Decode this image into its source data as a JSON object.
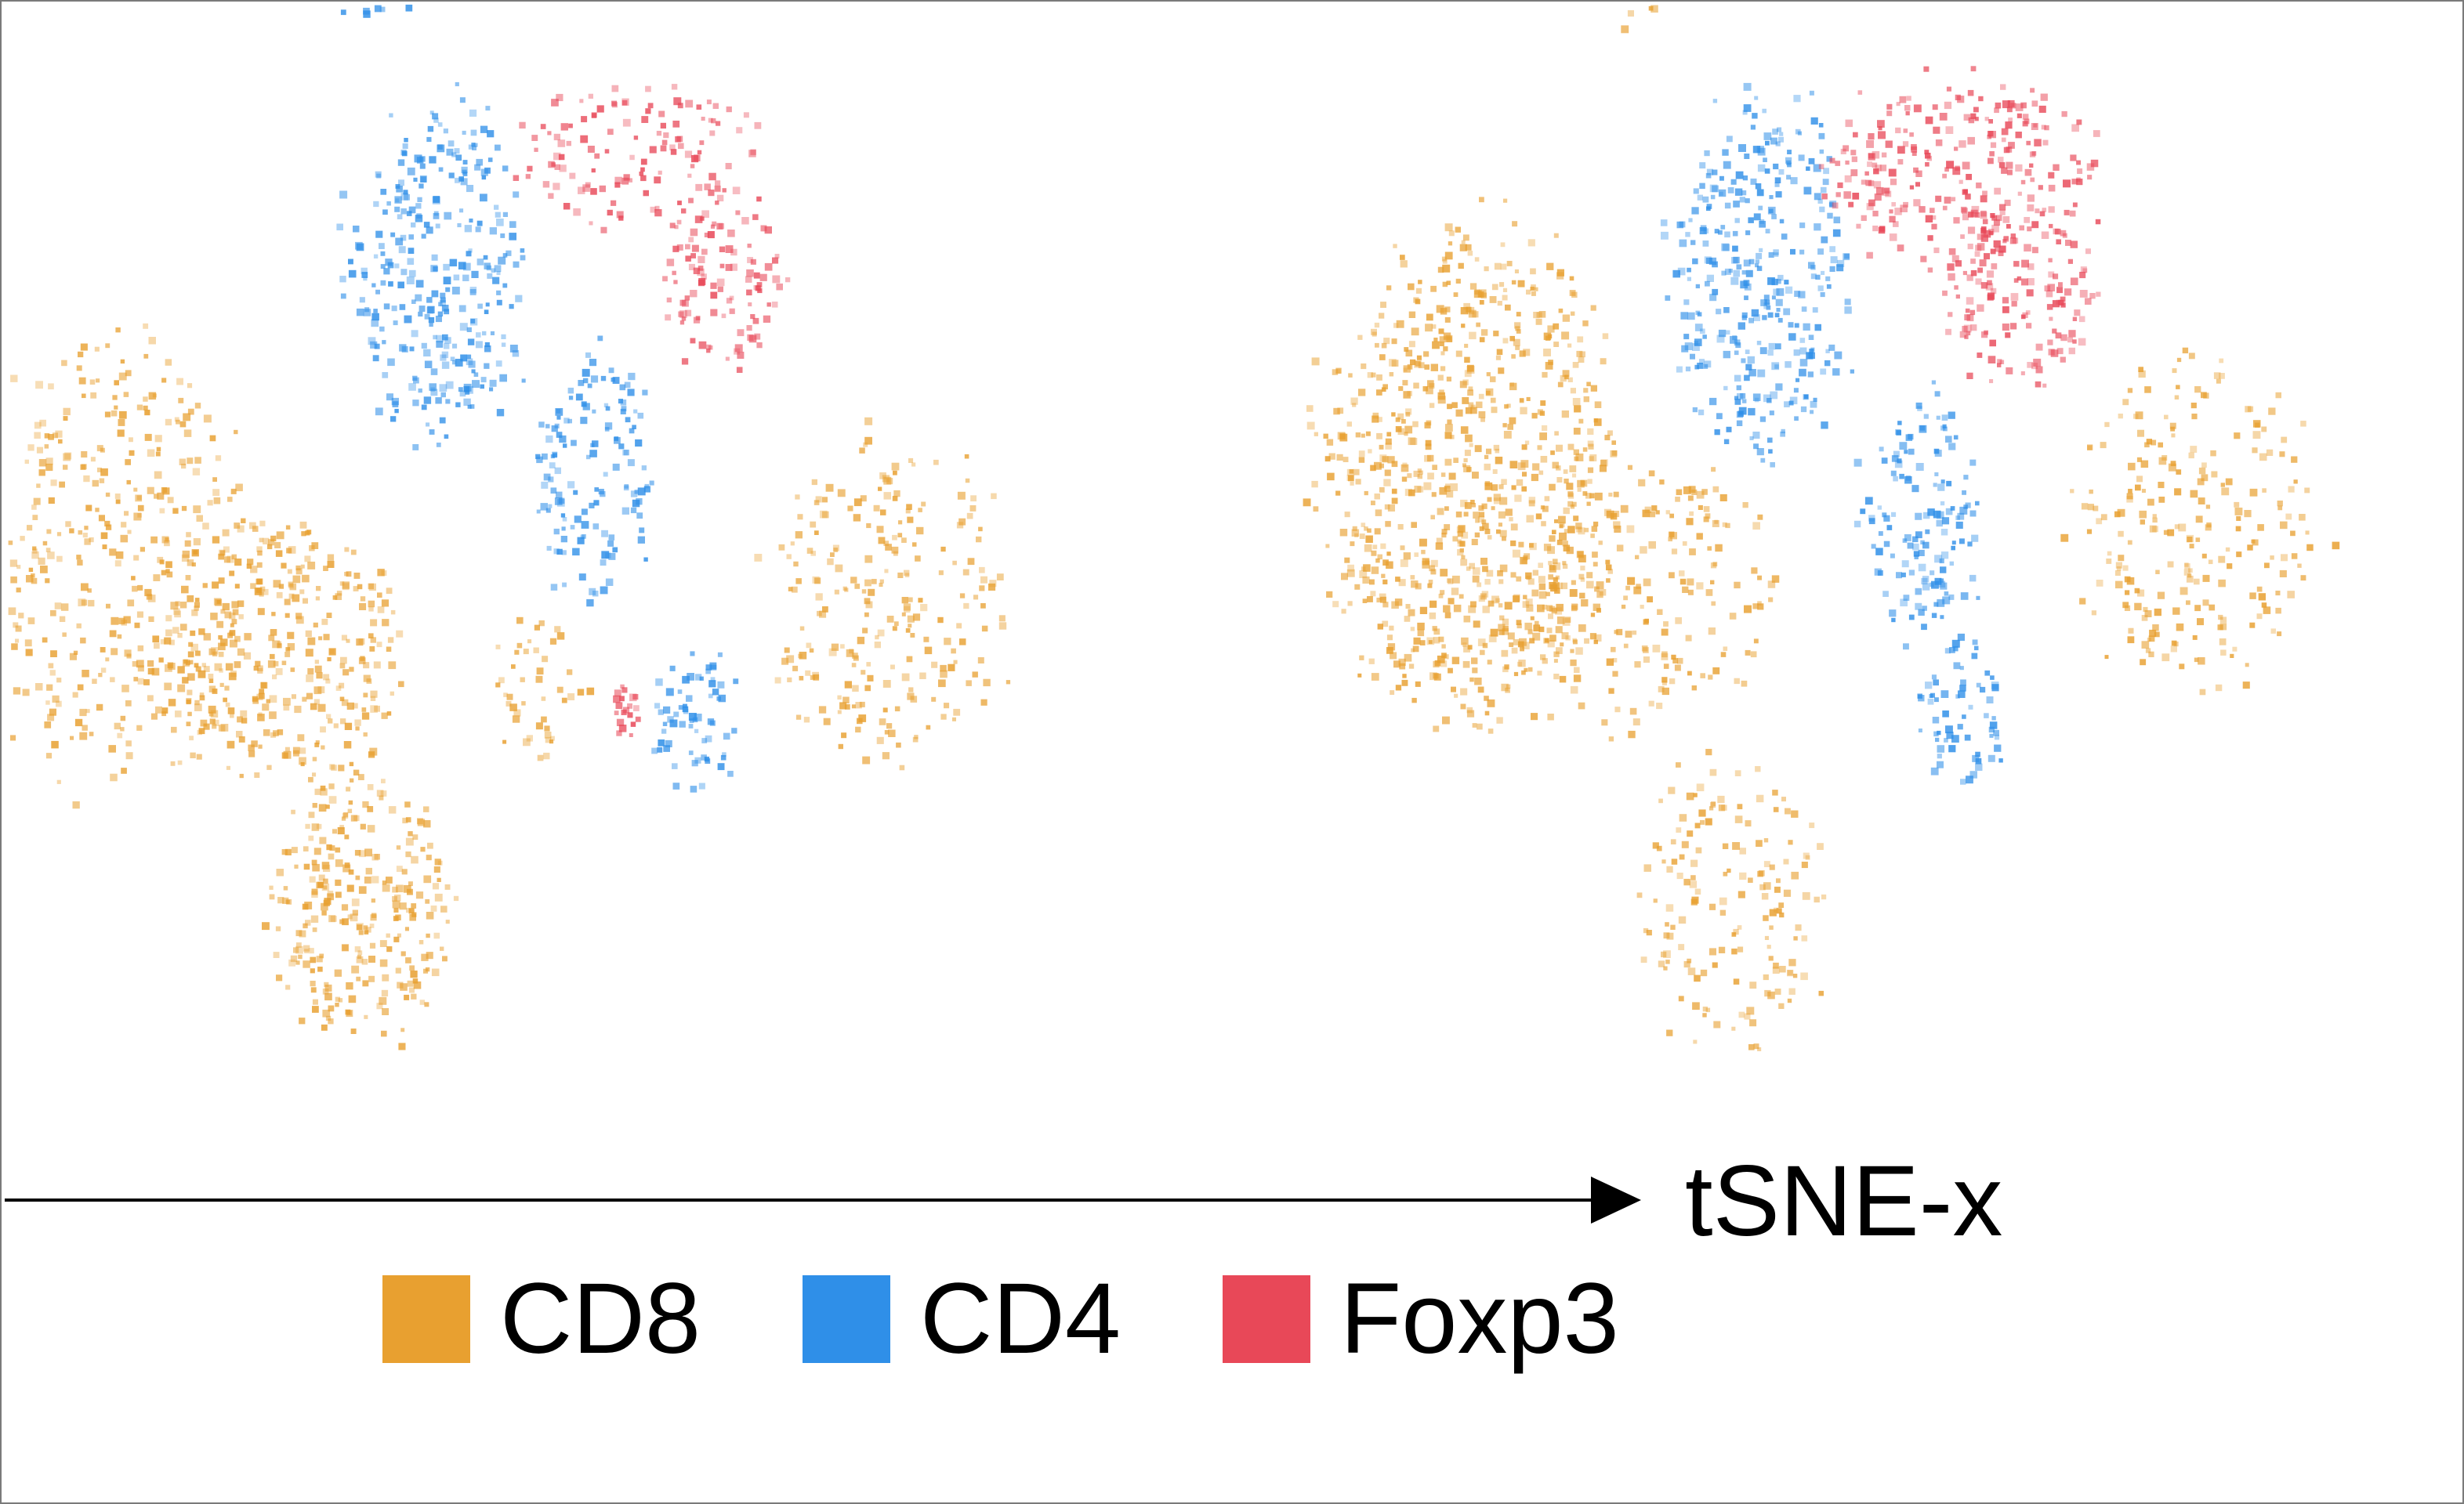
{
  "chart_data": {
    "type": "scatter",
    "title": "",
    "xlabel": "tSNE-x",
    "ylabel": "",
    "grid": false,
    "legend_position": "bottom",
    "colors": {
      "CD8": "#E8A030",
      "CD4": "#2F8FE8",
      "Foxp3": "#E84858"
    },
    "legend": [
      {
        "name": "CD8",
        "color": "#E8A030"
      },
      {
        "name": "CD4",
        "color": "#2F8FE8"
      },
      {
        "name": "Foxp3",
        "color": "#E84858"
      }
    ],
    "panels": [
      {
        "name": "",
        "clusters": [
          {
            "series": "CD8",
            "cx": -34,
            "cy": 1,
            "rx": 9,
            "ry": 15,
            "density": 0.45
          },
          {
            "series": "CD8",
            "cx": -22,
            "cy": -6,
            "rx": 8,
            "ry": 9,
            "density": 0.85
          },
          {
            "series": "CD8",
            "cx": -16,
            "cy": -24,
            "rx": 6,
            "ry": 9,
            "density": 0.85
          },
          {
            "series": "CD8",
            "cx": -4,
            "cy": -8,
            "rx": 3,
            "ry": 5,
            "density": 0.5
          },
          {
            "series": "CD8",
            "cx": 20,
            "cy": -2,
            "rx": 8,
            "ry": 11,
            "density": 0.45
          },
          {
            "series": "CD4",
            "cx": -11,
            "cy": 20,
            "rx": 6,
            "ry": 11,
            "density": 0.8
          },
          {
            "series": "CD4",
            "cx": 0,
            "cy": 6,
            "rx": 4,
            "ry": 8,
            "density": 0.75
          },
          {
            "series": "CD4",
            "cx": 7,
            "cy": -11,
            "rx": 3,
            "ry": 5,
            "density": 0.75
          },
          {
            "series": "CD4",
            "cx": -15,
            "cy": 39,
            "rx": 3,
            "ry": 2,
            "density": 0.6
          },
          {
            "series": "Foxp3",
            "cx": 3,
            "cy": 28,
            "rx": 8,
            "ry": 5,
            "density": 0.55
          },
          {
            "series": "Foxp3",
            "cx": 9,
            "cy": 19,
            "rx": 4,
            "ry": 6,
            "density": 0.75
          },
          {
            "series": "Foxp3",
            "cx": 2,
            "cy": -10,
            "rx": 1,
            "ry": 2,
            "density": 0.5
          }
        ]
      },
      {
        "name": "",
        "clusters": [
          {
            "series": "CD8",
            "cx": -24,
            "cy": 6,
            "rx": 10,
            "ry": 16,
            "density": 0.85
          },
          {
            "series": "CD8",
            "cx": -12,
            "cy": -2,
            "rx": 9,
            "ry": 9,
            "density": 0.45
          },
          {
            "series": "CD8",
            "cx": -6,
            "cy": -24,
            "rx": 6,
            "ry": 10,
            "density": 0.45
          },
          {
            "series": "CD8",
            "cx": 26,
            "cy": 3,
            "rx": 8,
            "ry": 11,
            "density": 0.45
          },
          {
            "series": "CD8",
            "cx": -13,
            "cy": 39,
            "rx": 2,
            "ry": 2,
            "density": 0.5
          },
          {
            "series": "CD4",
            "cx": -4,
            "cy": 20,
            "rx": 6,
            "ry": 12,
            "density": 0.8
          },
          {
            "series": "CD4",
            "cx": 7,
            "cy": 3,
            "rx": 4,
            "ry": 8,
            "density": 0.75
          },
          {
            "series": "CD4",
            "cx": 10,
            "cy": -10,
            "rx": 3,
            "ry": 5,
            "density": 0.75
          },
          {
            "series": "CD4",
            "cx": -17,
            "cy": 41,
            "rx": 3,
            "ry": 2,
            "density": 0.6
          },
          {
            "series": "Foxp3",
            "cx": 10,
            "cy": 27,
            "rx": 9,
            "ry": 6,
            "density": 0.8
          },
          {
            "series": "Foxp3",
            "cx": 14,
            "cy": 18,
            "rx": 5,
            "ry": 6,
            "density": 0.8
          }
        ]
      }
    ]
  }
}
